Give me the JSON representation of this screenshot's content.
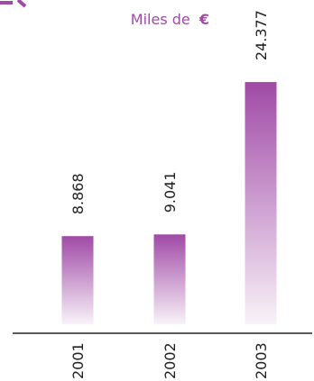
{
  "chart_data": {
    "type": "bar",
    "unit_label": "Miles de",
    "unit_symbol": "€",
    "categories": [
      "2001",
      "2002",
      "2003"
    ],
    "values": [
      8868,
      9041,
      24377
    ],
    "value_labels": [
      "8.868",
      "9.041",
      "24.377"
    ],
    "bar_color": "#a04aa6",
    "ylim": [
      0,
      32000
    ]
  }
}
